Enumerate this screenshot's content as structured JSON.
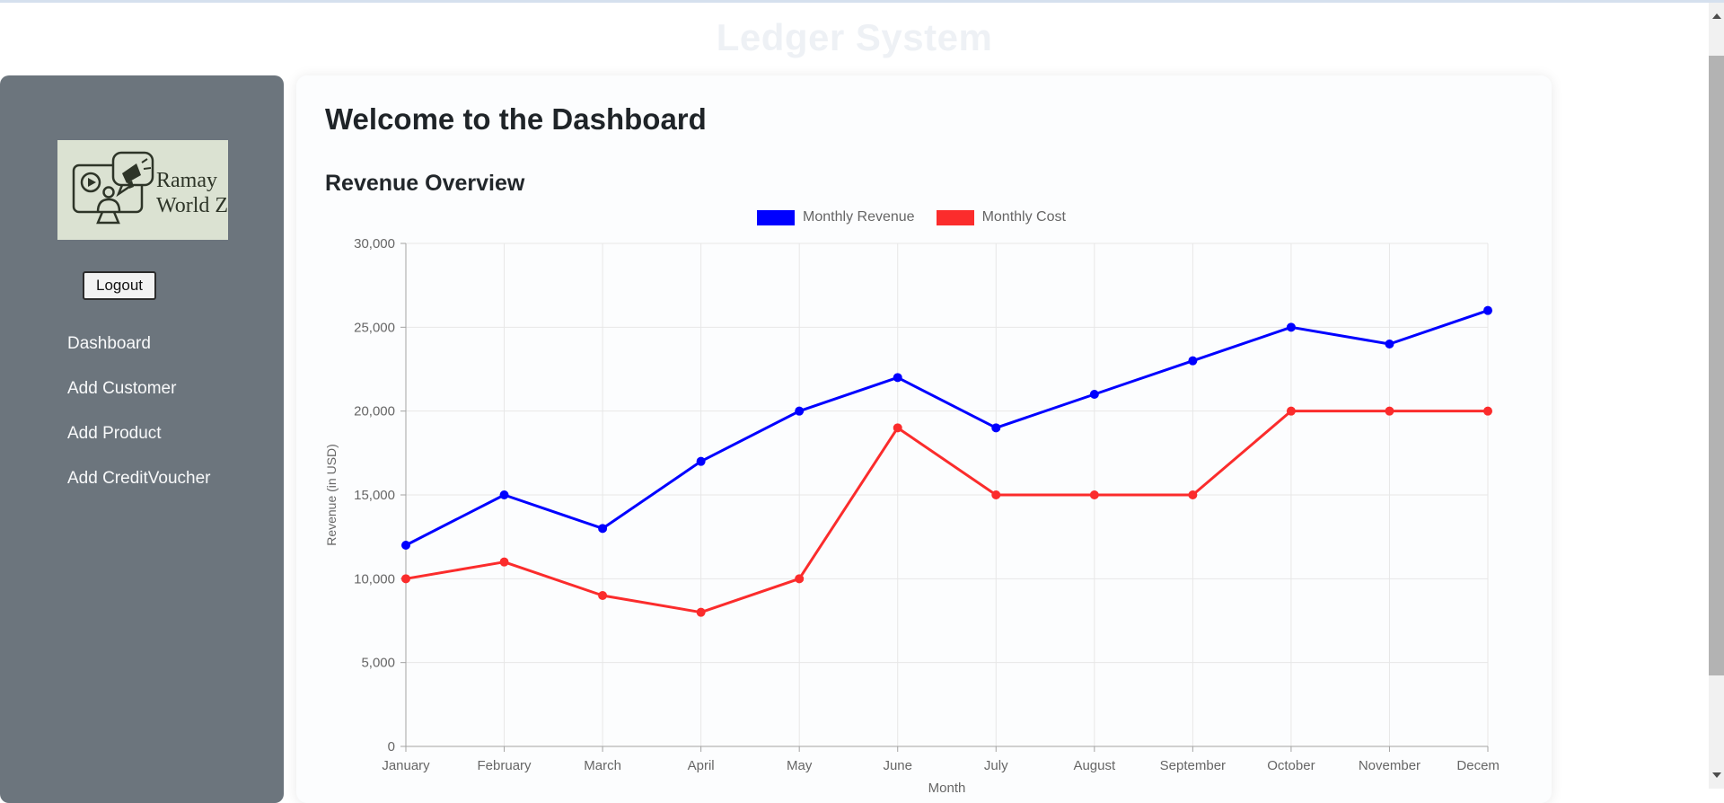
{
  "page": {
    "title": "Ledger System"
  },
  "sidebar": {
    "logo": {
      "line1": "Ramay",
      "line2": "World Zone"
    },
    "logout_label": "Logout",
    "items": [
      {
        "label": "Dashboard"
      },
      {
        "label": "Add Customer"
      },
      {
        "label": "Add Product"
      },
      {
        "label": "Add CreditVoucher"
      }
    ]
  },
  "main": {
    "heading": "Welcome to the Dashboard",
    "subheading": "Revenue Overview"
  },
  "chart_data": {
    "type": "line",
    "categories": [
      "January",
      "February",
      "March",
      "April",
      "May",
      "June",
      "July",
      "August",
      "September",
      "October",
      "November",
      "December"
    ],
    "series": [
      {
        "name": "Monthly Revenue",
        "color": "#0000ff",
        "values": [
          12000,
          15000,
          13000,
          17000,
          20000,
          22000,
          19000,
          21000,
          23000,
          25000,
          24000,
          26000
        ]
      },
      {
        "name": "Monthly Cost",
        "color": "#fb2c2c",
        "values": [
          10000,
          11000,
          9000,
          8000,
          10000,
          19000,
          15000,
          15000,
          15000,
          20000,
          20000,
          20000
        ]
      }
    ],
    "xlabel": "Month",
    "ylabel": "Revenue (in USD)",
    "ylim": [
      0,
      30000
    ],
    "ytick_step": 5000,
    "grid": true,
    "legend_position": "top"
  },
  "colors": {
    "sidebar_bg": "#6c757d",
    "logo_bg": "#dbe2d2",
    "grid_line": "#e7e7e7",
    "axis_line": "#a3a3a3",
    "tick_text": "#666666"
  }
}
